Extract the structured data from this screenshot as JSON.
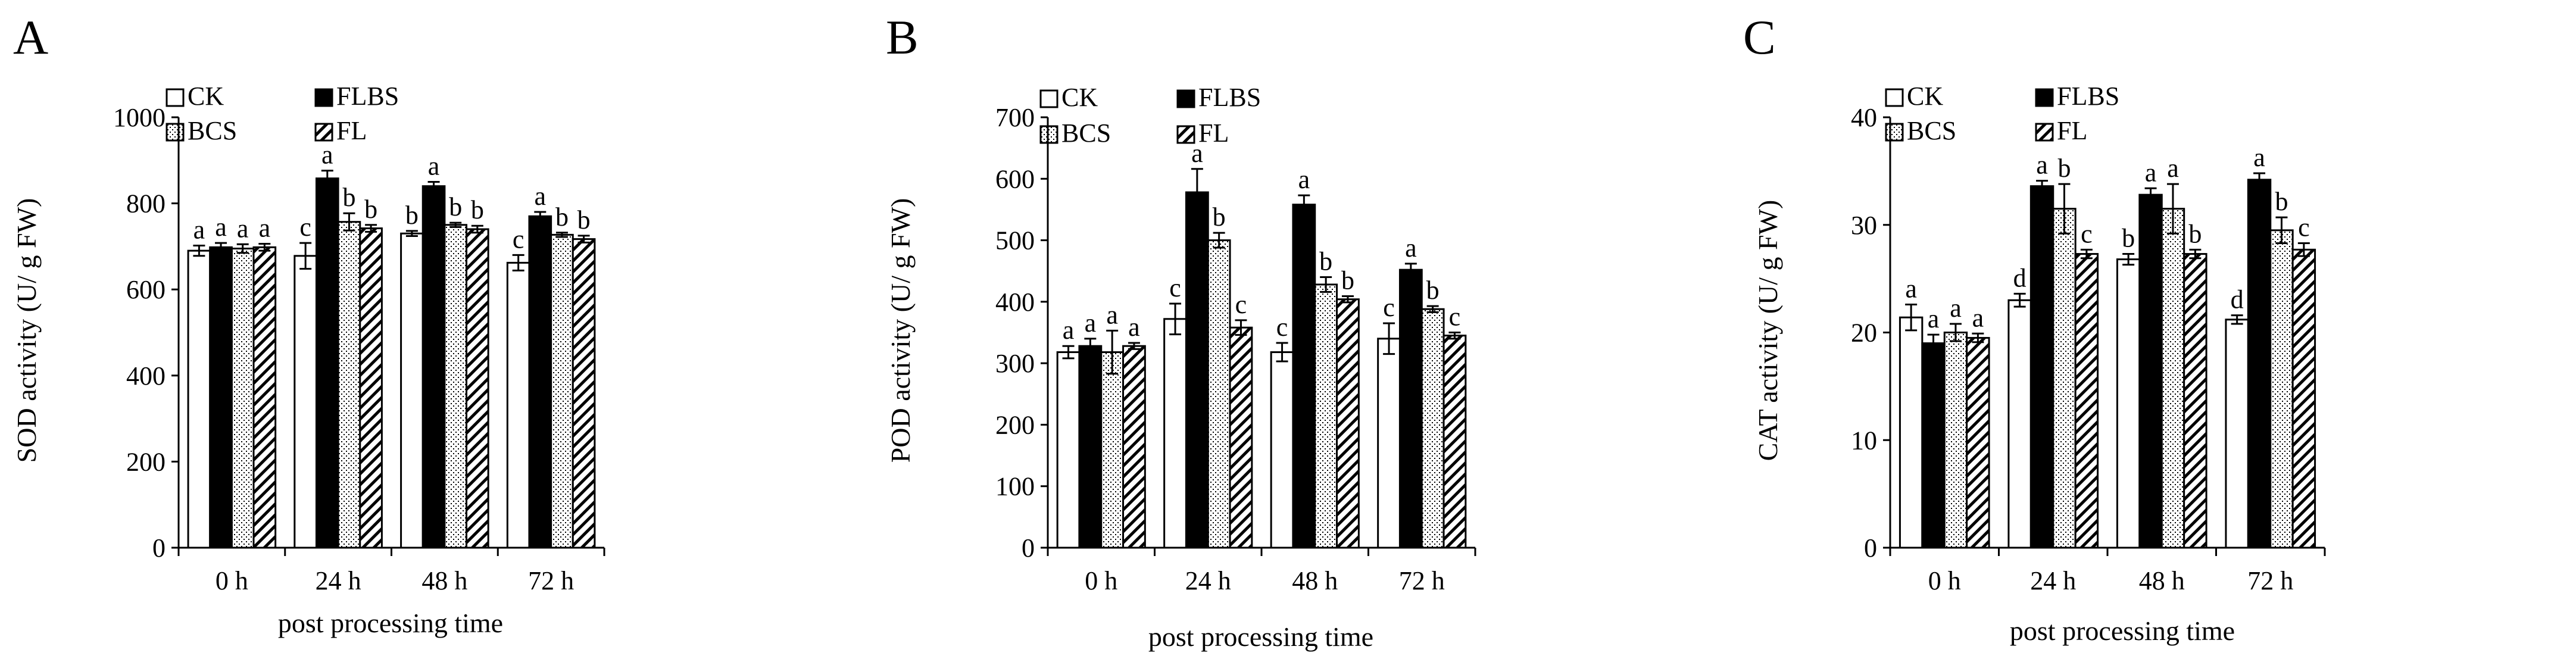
{
  "legend": {
    "items": [
      {
        "label": "CK",
        "pattern": "white"
      },
      {
        "label": "FLBS",
        "pattern": "black"
      },
      {
        "label": "BCS",
        "pattern": "dots"
      },
      {
        "label": "FL",
        "pattern": "hatch"
      }
    ]
  },
  "colors": {
    "ink": "#000000",
    "background": "#ffffff"
  },
  "chart_data": [
    {
      "panel_label": "A",
      "type": "bar",
      "xlabel": "post processing time",
      "ylabel": "SOD activity (U/ g FW)",
      "ylim": [
        0,
        1000
      ],
      "yticks": [
        0,
        200,
        400,
        600,
        800,
        1000
      ],
      "categories": [
        "0 h",
        "24 h",
        "48 h",
        "72 h"
      ],
      "series": [
        {
          "name": "CK",
          "values": [
            690,
            678,
            730,
            662
          ],
          "errors": [
            12,
            30,
            6,
            18
          ],
          "letters": [
            "a",
            "c",
            "b",
            "c"
          ]
        },
        {
          "name": "FLBS",
          "values": [
            698,
            858,
            840,
            770
          ],
          "errors": [
            10,
            18,
            10,
            10
          ],
          "letters": [
            "a",
            "a",
            "a",
            "a"
          ]
        },
        {
          "name": "BCS",
          "values": [
            695,
            757,
            750,
            727
          ],
          "errors": [
            10,
            20,
            5,
            5
          ],
          "letters": [
            "a",
            "b",
            "b",
            "b"
          ]
        },
        {
          "name": "FL",
          "values": [
            698,
            742,
            740,
            717
          ],
          "errors": [
            8,
            8,
            8,
            8
          ],
          "letters": [
            "a",
            "b",
            "b",
            "b"
          ]
        }
      ]
    },
    {
      "panel_label": "B",
      "type": "bar",
      "xlabel": "post processing time",
      "ylabel": "POD activity (U/ g FW)",
      "ylim": [
        0,
        700
      ],
      "yticks": [
        0,
        100,
        200,
        300,
        400,
        500,
        600,
        700
      ],
      "categories": [
        "0 h",
        "24 h",
        "48 h",
        "72 h"
      ],
      "series": [
        {
          "name": "CK",
          "values": [
            318,
            372,
            318,
            340
          ],
          "errors": [
            10,
            25,
            15,
            25
          ],
          "letters": [
            "a",
            "c",
            "c",
            "c"
          ]
        },
        {
          "name": "FLBS",
          "values": [
            328,
            578,
            558,
            452
          ],
          "errors": [
            12,
            38,
            15,
            10
          ],
          "letters": [
            "a",
            "a",
            "a",
            "a"
          ]
        },
        {
          "name": "BCS",
          "values": [
            318,
            500,
            428,
            388
          ],
          "errors": [
            35,
            12,
            12,
            5
          ],
          "letters": [
            "a",
            "b",
            "b",
            "b"
          ]
        },
        {
          "name": "FL",
          "values": [
            328,
            358,
            404,
            345
          ],
          "errors": [
            5,
            12,
            5,
            5
          ],
          "letters": [
            "a",
            "c",
            "b",
            "c"
          ]
        }
      ]
    },
    {
      "panel_label": "C",
      "type": "bar",
      "xlabel": "post processing time",
      "ylabel": "CAT activity (U/ g FW)",
      "ylim": [
        0,
        40
      ],
      "yticks": [
        0,
        10,
        20,
        30,
        40
      ],
      "categories": [
        "0 h",
        "24 h",
        "48 h",
        "72 h"
      ],
      "series": [
        {
          "name": "CK",
          "values": [
            21.4,
            23.0,
            26.8,
            21.2
          ],
          "errors": [
            1.2,
            0.6,
            0.5,
            0.4
          ],
          "letters": [
            "a",
            "d",
            "b",
            "d"
          ]
        },
        {
          "name": "FLBS",
          "values": [
            19.0,
            33.6,
            32.8,
            34.2
          ],
          "errors": [
            0.8,
            0.5,
            0.6,
            0.6
          ],
          "letters": [
            "a",
            "a",
            "a",
            "a"
          ]
        },
        {
          "name": "BCS",
          "values": [
            20.0,
            31.5,
            31.5,
            29.5
          ],
          "errors": [
            0.8,
            2.3,
            2.3,
            1.2
          ],
          "letters": [
            "a",
            "b",
            "a",
            "b"
          ]
        },
        {
          "name": "FL",
          "values": [
            19.5,
            27.3,
            27.3,
            27.7
          ],
          "errors": [
            0.4,
            0.4,
            0.4,
            0.6
          ],
          "letters": [
            "a",
            "c",
            "b",
            "c"
          ]
        }
      ]
    }
  ]
}
